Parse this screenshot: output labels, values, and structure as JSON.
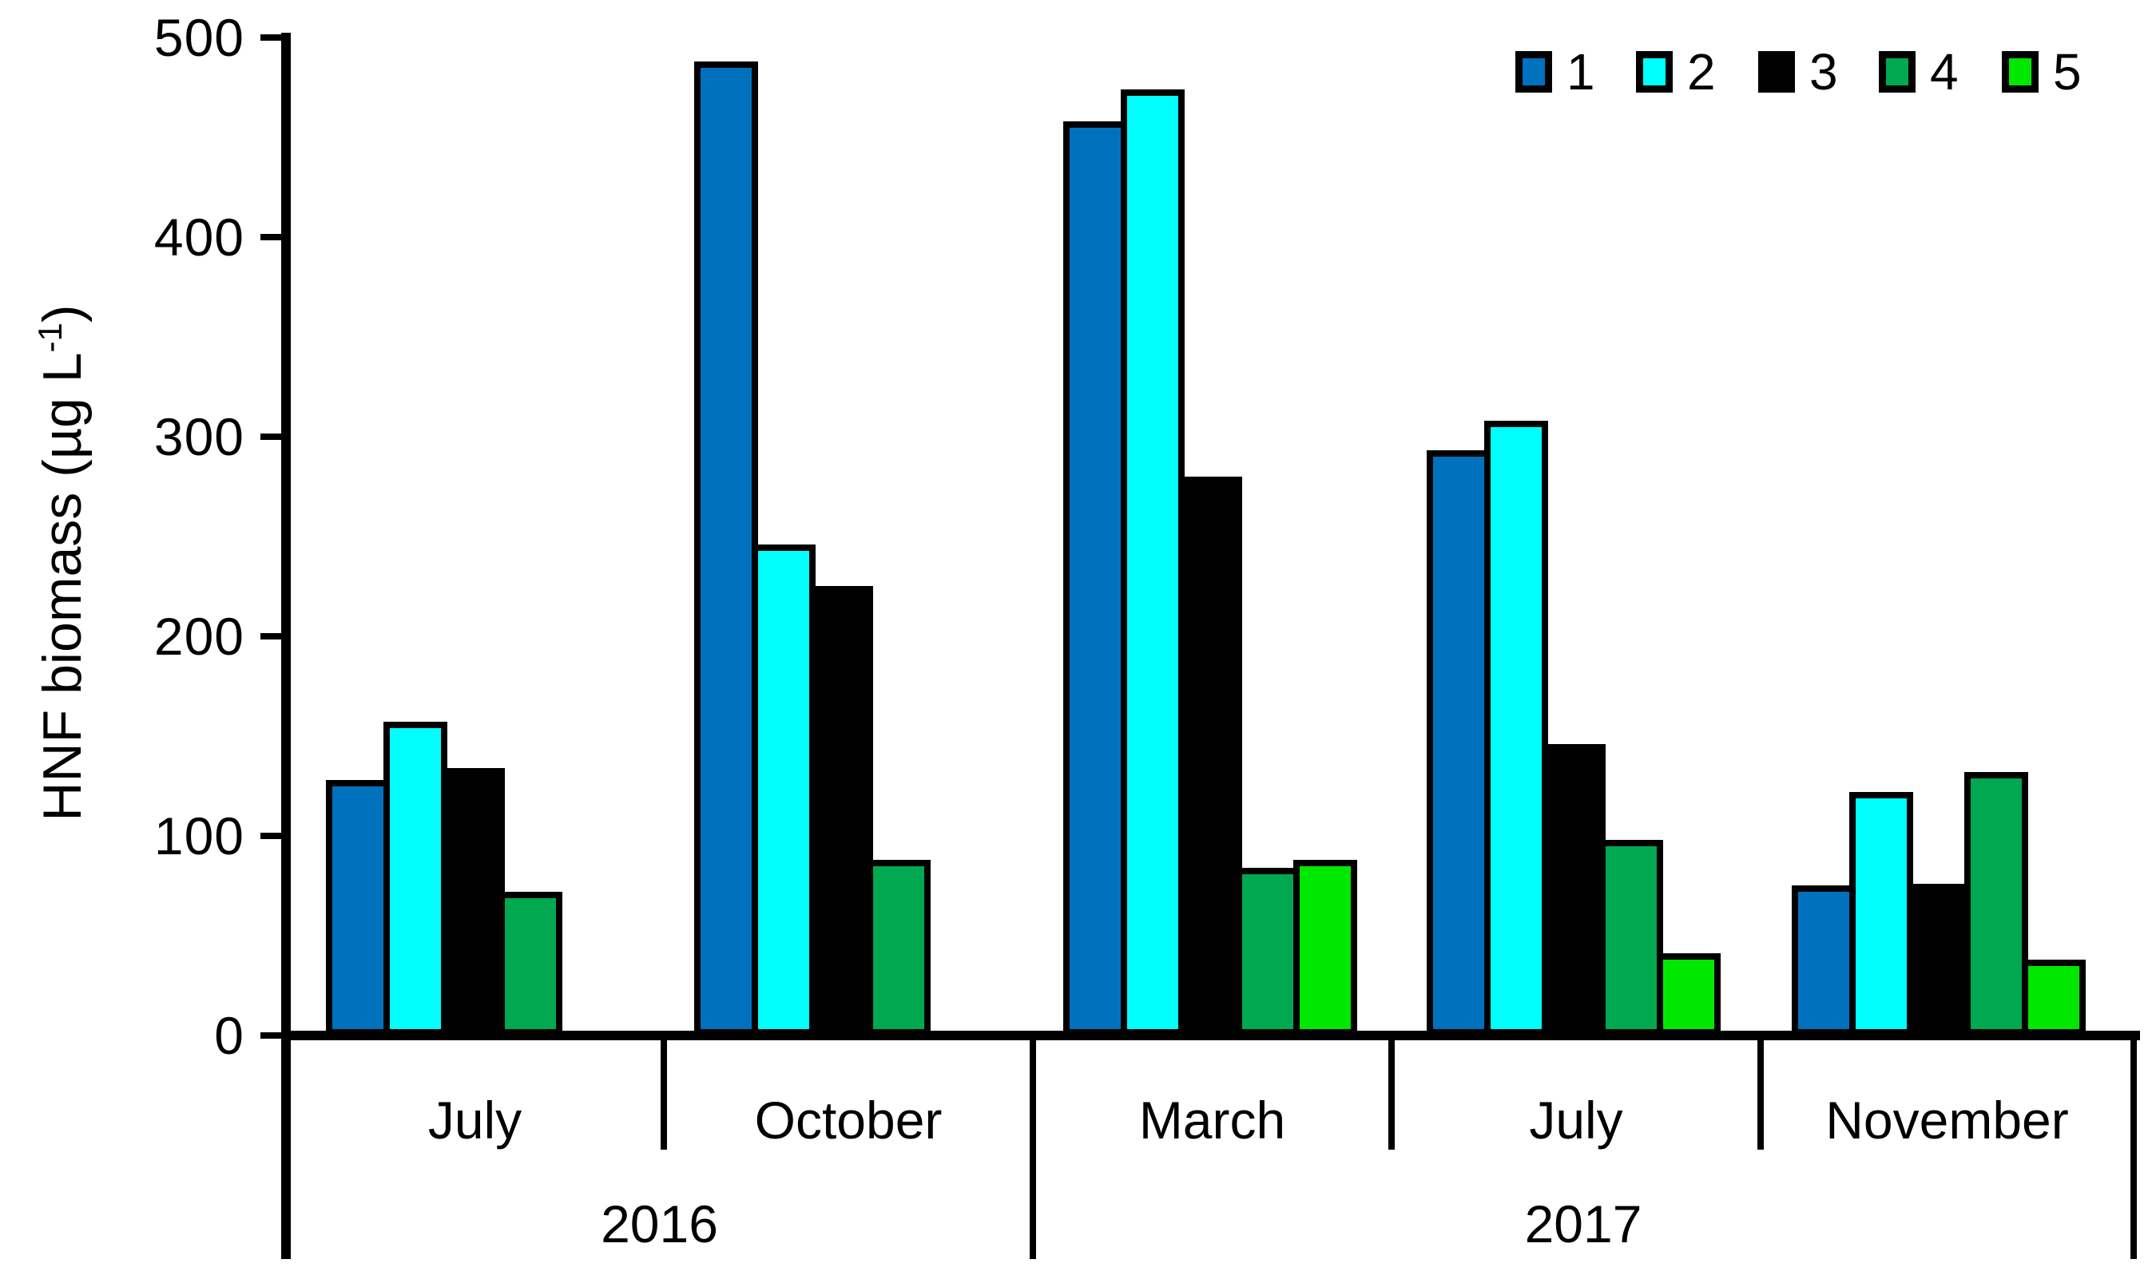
{
  "chart_data": {
    "type": "bar",
    "title": "",
    "ylabel": {
      "pre": "HNF biomass (µg L",
      "sup": "-1",
      "post": ")"
    },
    "ylim": [
      0,
      500
    ],
    "yticks": [
      0,
      100,
      200,
      300,
      400,
      500
    ],
    "grid": false,
    "legend_position": "top-right",
    "legend": [
      {
        "name": "1",
        "color": "#0071BC"
      },
      {
        "name": "2",
        "color": "#00FFFF"
      },
      {
        "name": "3",
        "color": "#000000"
      },
      {
        "name": "4",
        "color": "#00A850"
      },
      {
        "name": "5",
        "color": "#00E800"
      }
    ],
    "groups": [
      {
        "month": "July",
        "year": "2016",
        "values": [
          128,
          157,
          134,
          72,
          null
        ]
      },
      {
        "month": "October",
        "year": "2016",
        "values": [
          488,
          246,
          225,
          88,
          null
        ]
      },
      {
        "month": "March",
        "year": "2017",
        "values": [
          458,
          474,
          280,
          84,
          88
        ]
      },
      {
        "month": "July",
        "year": "2017",
        "values": [
          293,
          308,
          146,
          98,
          41
        ]
      },
      {
        "month": "November",
        "year": "2017",
        "values": [
          75,
          122,
          76,
          132,
          38
        ]
      }
    ],
    "years": [
      {
        "label": "2016",
        "cells": [
          0,
          2
        ]
      },
      {
        "label": "2017",
        "cells": [
          2,
          5
        ]
      }
    ]
  }
}
